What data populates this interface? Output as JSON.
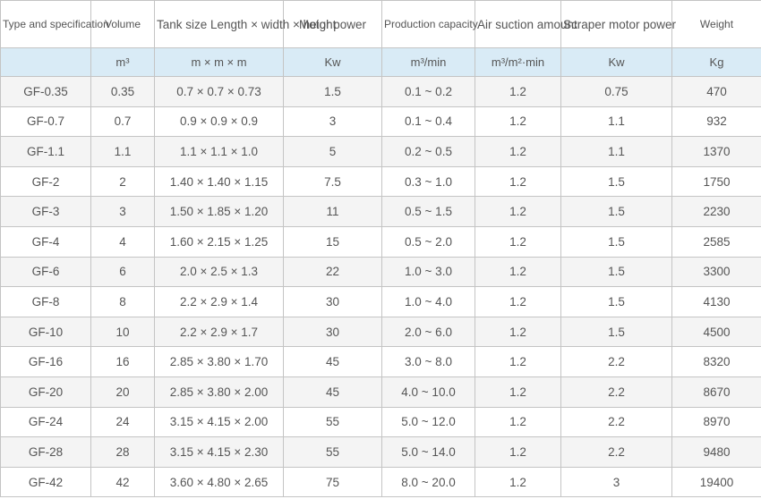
{
  "table": {
    "headers": [
      "Type and specification",
      "Volume",
      "Tank size Length × width × height",
      "Motor power",
      "Production capacity",
      "Air suction amount",
      "Scraper motor power",
      "Weight"
    ],
    "units": [
      "",
      "m³",
      "m × m × m",
      "Kw",
      "m³/min",
      "m³/m²·min",
      "Kw",
      "Kg"
    ],
    "rows": [
      [
        "GF-0.35",
        "0.35",
        "0.7 × 0.7 × 0.73",
        "1.5",
        "0.1 ~ 0.2",
        "1.2",
        "0.75",
        "470"
      ],
      [
        "GF-0.7",
        "0.7",
        "0.9 × 0.9 × 0.9",
        "3",
        "0.1 ~ 0.4",
        "1.2",
        "1.1",
        "932"
      ],
      [
        "GF-1.1",
        "1.1",
        "1.1 × 1.1 × 1.0",
        "5",
        "0.2 ~ 0.5",
        "1.2",
        "1.1",
        "1370"
      ],
      [
        "GF-2",
        "2",
        "1.40 × 1.40 × 1.15",
        "7.5",
        "0.3 ~ 1.0",
        "1.2",
        "1.5",
        "1750"
      ],
      [
        "GF-3",
        "3",
        "1.50 × 1.85 × 1.20",
        "11",
        "0.5 ~ 1.5",
        "1.2",
        "1.5",
        "2230"
      ],
      [
        "GF-4",
        "4",
        "1.60 × 2.15 × 1.25",
        "15",
        "0.5 ~ 2.0",
        "1.2",
        "1.5",
        "2585"
      ],
      [
        "GF-6",
        "6",
        "2.0 × 2.5 × 1.3",
        "22",
        "1.0 ~ 3.0",
        "1.2",
        "1.5",
        "3300"
      ],
      [
        "GF-8",
        "8",
        "2.2 × 2.9 × 1.4",
        "30",
        "1.0 ~ 4.0",
        "1.2",
        "1.5",
        "4130"
      ],
      [
        "GF-10",
        "10",
        "2.2 × 2.9 × 1.7",
        "30",
        "2.0 ~ 6.0",
        "1.2",
        "1.5",
        "4500"
      ],
      [
        "GF-16",
        "16",
        "2.85 × 3.80 × 1.70",
        "45",
        "3.0 ~ 8.0",
        "1.2",
        "2.2",
        "8320"
      ],
      [
        "GF-20",
        "20",
        "2.85 × 3.80 × 2.00",
        "45",
        "4.0 ~ 10.0",
        "1.2",
        "2.2",
        "8670"
      ],
      [
        "GF-24",
        "24",
        "3.15 × 4.15 × 2.00",
        "55",
        "5.0 ~ 12.0",
        "1.2",
        "2.2",
        "8970"
      ],
      [
        "GF-28",
        "28",
        "3.15 × 4.15 × 2.30",
        "55",
        "5.0 ~ 14.0",
        "1.2",
        "2.2",
        "9480"
      ],
      [
        "GF-42",
        "42",
        "3.60 × 4.80 × 2.65",
        "75",
        "8.0 ~ 20.0",
        "1.2",
        "3",
        "19400"
      ]
    ]
  }
}
